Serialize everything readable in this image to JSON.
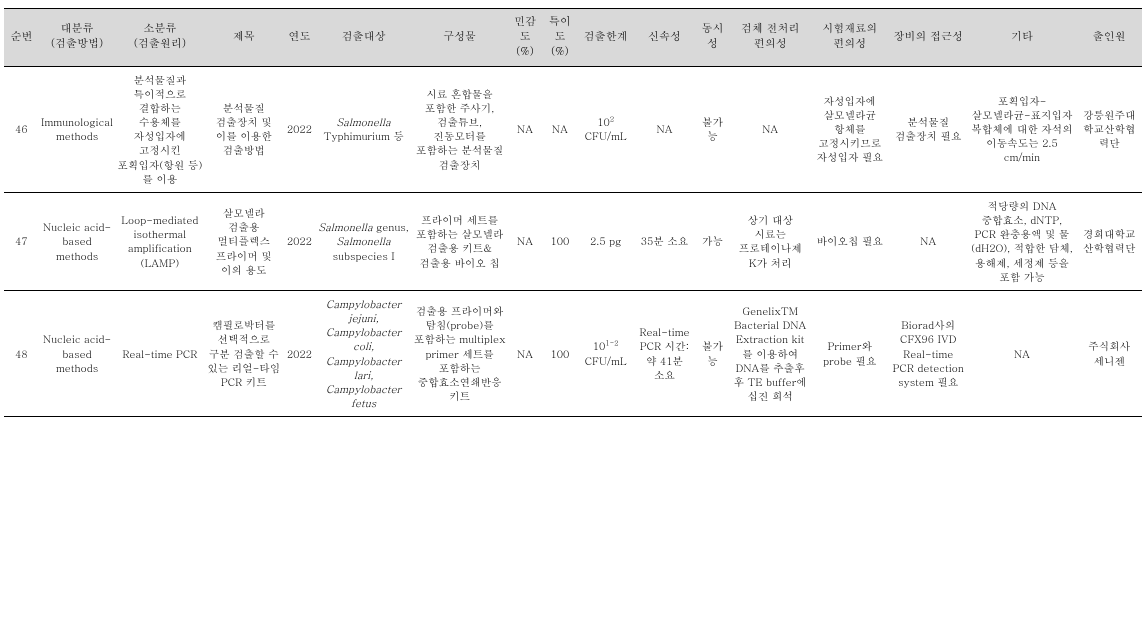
{
  "headers": {
    "h0": "순번",
    "h1": "대분류 (검출방법)",
    "h2": "소분류 (검출원리)",
    "h3": "제목",
    "h4": "연도",
    "h5": "검출대상",
    "h6": "구성물",
    "h7": "민감도 (%)",
    "h8": "특이도 (%)",
    "h9": "검출한계",
    "h10": "신속성",
    "h11": "동시성",
    "h12": "검체 전처리 편의성",
    "h13": "시험재료의 편의성",
    "h14": "장비의 접근성",
    "h15": "기타",
    "h16": "출인원"
  },
  "rows": {
    "r0": {
      "c0": "46",
      "c1": "Immunological methods",
      "c2": "분석물질과 특이적으로 결합하는 수용체를 자성입자에 고정시킨 포획입자(항원 등)를 이용",
      "c3": "분석물질 검출장치 및 이를 이용한 검출방법",
      "c4": "2022",
      "c5_html": "<span class=\"italic\">Salmonella</span> Typhimurium 등",
      "c6": "시료 혼합물을 포함한 주사기, 검출튜브, 진동모터를 포함하는 분석물질 검출장치",
      "c7": "NA",
      "c8": "NA",
      "c9_html": "10<sup>2</sup> CFU/mL",
      "c10": "NA",
      "c11": "불가능",
      "c12": "NA",
      "c13": "자성입자에 살모넬라균 항체를 고정시키므로 자성입자 필요",
      "c14": "분석물질 검출장치 필요",
      "c15": "포획입자-살모넬라균-표지입자 복합체에 대한 자석의 이동속도는 2.5 cm/min",
      "c16": "강릉원주대학교산학협력단"
    },
    "r1": {
      "c0": "47",
      "c1": "Nucleic acid-based methods",
      "c2": "Loop-mediated isothermal amplification (LAMP)",
      "c3": "살모넬라 검출용 멀티플렉스 프라이머 및 이의 용도",
      "c4": "2022",
      "c5_html": "<span class=\"italic\">Salmonella</span> genus, <span class=\"italic\">Salmonella</span> subspecies I",
      "c6": "프라이머 세트를 포함하는 살모넬라 검출용 키트&검출용 바이오 칩",
      "c7": "NA",
      "c8": "100",
      "c9_html": "2.5 pg",
      "c10": "35분 소요",
      "c11": "가능",
      "c12": "상기 대상 시료는 프로테이나제 K가 처리",
      "c13": "바이오칩 필요",
      "c14": "NA",
      "c15": "적당량의 DNA 중합효소, dNTP, PCR 완충용액 및 물(dH2O), 적합한 담체, 용해제, 세정제 등을 포함 가능",
      "c16": "경희대학교 산학협력단"
    },
    "r2": {
      "c0": "48",
      "c1": "Nucleic acid-based methods",
      "c2": "Real-time PCR",
      "c3": "캠필로박터를 선택적으로 구분 검출할 수 있는 리얼-타임 PCR 키트",
      "c4": "2022",
      "c5_html": "<span class=\"italic\">Campylobacter jejuni, Campylobacter coli, Campylobacter lari, Campylobacter fetus</span>",
      "c6": "검출용 프라이머와 탐침(probe)를 포함하는 multiplex primer 세트를 포함하는 중합효소연쇄반응 키트",
      "c7": "NA",
      "c8": "100",
      "c9_html": "10<sup>1-2</sup> CFU/mL",
      "c10": "Real-time PCR 시간: 약 41분 소요",
      "c11": "불가능",
      "c12": "GenelixTM Bacterial DNA Extraction kit 를 이용하여 DNA를 추출후 후 TE buffer에 십진 희석",
      "c13": "Primer와 probe 필요",
      "c14": "Biorad사의 CFX96 IVD Real-time PCR detection system 필요",
      "c15": "NA",
      "c16": "주식회사 세니젠"
    }
  },
  "colWidths": [
    "32",
    "70",
    "82",
    "72",
    "30",
    "88",
    "88",
    "32",
    "32",
    "52",
    "56",
    "32",
    "74",
    "72",
    "72",
    "100",
    "60"
  ]
}
